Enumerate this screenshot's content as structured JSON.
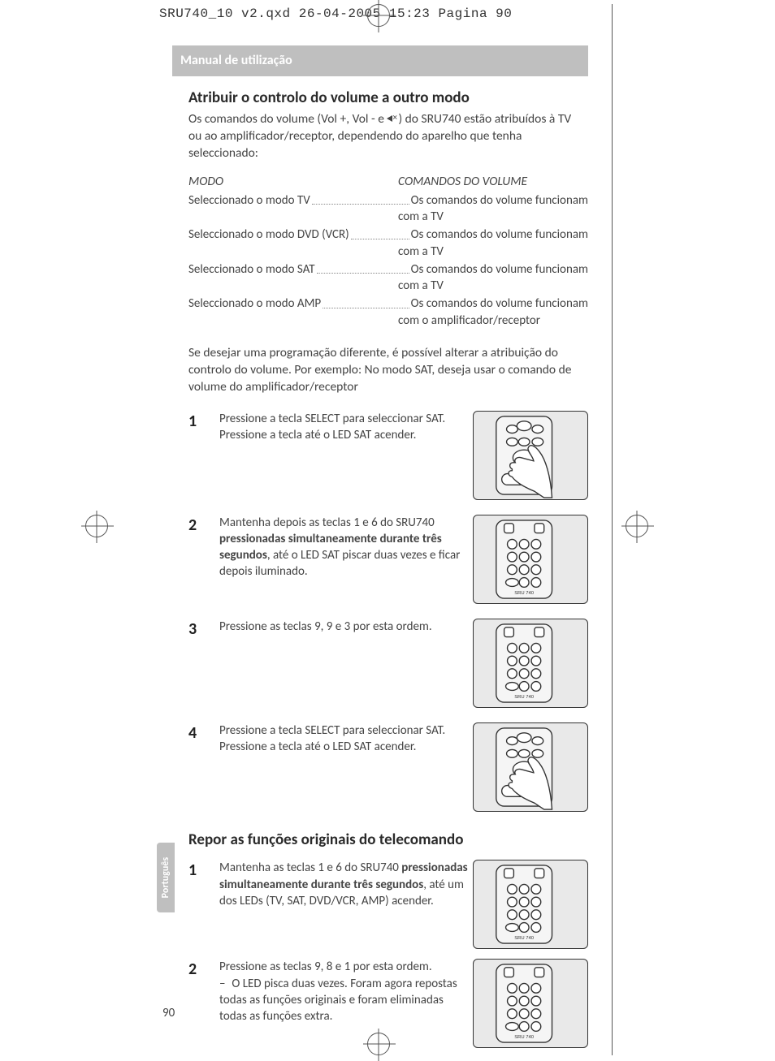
{
  "print_header": "SRU740_10 v2.qxd  26-04-2005  15:23  Pagina 90",
  "banner": "Manual de utilização",
  "section1": {
    "title": "Atribuir o controlo do volume a outro modo",
    "intro_line1": "Os comandos do volume (Vol +, Vol - e ",
    "intro_line2": ") do SRU740 estão atribuídos à TV",
    "intro_line3": "ou ao amplificador/receptor, dependendo do aparelho que tenha seleccionado:",
    "col1": "MODO",
    "col2": "COMANDOS DO VOLUME",
    "rows": [
      {
        "l": "Seleccionado o modo TV",
        "r": "Os comandos do volume funcionam",
        "cont": "com a TV"
      },
      {
        "l": "Seleccionado o modo DVD (VCR)",
        "r": "Os comandos do volume funcionam",
        "cont": "com a TV"
      },
      {
        "l": "Seleccionado o modo SAT",
        "r": "Os comandos do volume funcionam",
        "cont": "com a TV"
      },
      {
        "l": "Seleccionado o modo AMP",
        "r": "Os comandos do volume funcionam",
        "cont": "com o amplificador/receptor"
      }
    ],
    "para2": "Se desejar uma programação diferente, é possível alterar a atribuição do controlo do volume. Por exemplo: No modo SAT, deseja usar o comando de volume do amplificador/receptor",
    "steps": [
      {
        "n": "1",
        "t": "Pressione a tecla SELECT para seleccionar SAT. Pressione a tecla até o LED SAT acender."
      },
      {
        "n": "2",
        "t_pre": "Mantenha depois as teclas 1 e 6 do SRU740 ",
        "t_bold": "pressionadas simultaneamente durante três segundos",
        "t_post": ", até o LED SAT piscar duas vezes e ficar depois iluminado."
      },
      {
        "n": "3",
        "t": "Pressione as teclas 9, 9 e 3 por esta ordem."
      },
      {
        "n": "4",
        "t": "Pressione a tecla SELECT para seleccionar SAT. Pressione a tecla até o LED SAT acender."
      }
    ]
  },
  "section2": {
    "title": "Repor as funções originais do telecomando",
    "steps": [
      {
        "n": "1",
        "t_pre": "Mantenha as teclas 1 e 6 do SRU740 ",
        "t_bold": "pressionadas simultaneamente durante três segundos",
        "t_post": ", até um dos LEDs (TV, SAT, DVD/VCR, AMP) acender."
      },
      {
        "n": "2",
        "t": "Pressione as teclas 9, 8 e 1 por esta ordem.",
        "sub": "O LED pisca duas vezes. Foram agora repostas todas as funções originais e foram eliminadas todas as funções extra."
      }
    ]
  },
  "page_number": "90",
  "language_tab": "Português",
  "colors": {
    "banner_bg": "#bfbfbf",
    "banner_fg": "#ffffff",
    "body_text": "#444444",
    "heading": "#2a2a2a",
    "illustration_bg": "#e9e9e9",
    "illustration_stroke": "#333333"
  }
}
